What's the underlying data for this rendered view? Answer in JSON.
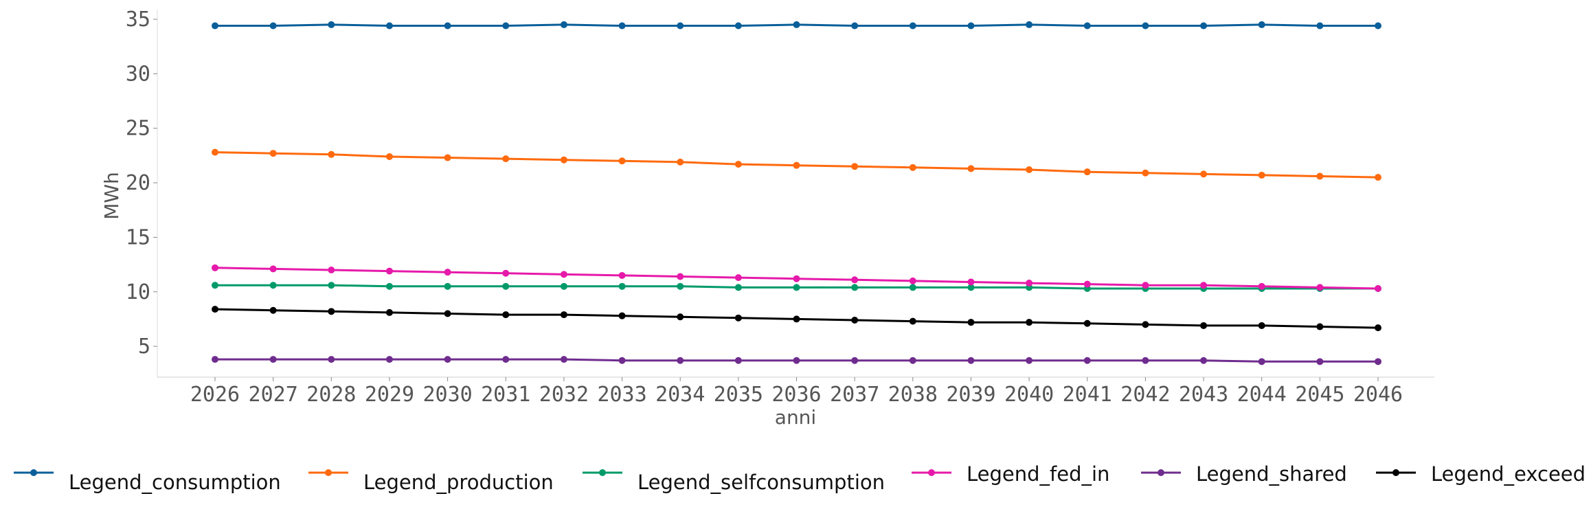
{
  "chart_data": {
    "type": "line",
    "xlabel": "anni",
    "ylabel": "MWh",
    "x": [
      "2026",
      "2027",
      "2028",
      "2029",
      "2030",
      "2031",
      "2032",
      "2033",
      "2034",
      "2035",
      "2036",
      "2037",
      "2038",
      "2039",
      "2040",
      "2041",
      "2042",
      "2043",
      "2044",
      "2045",
      "2046"
    ],
    "ylim": [
      2,
      35.5
    ],
    "yticks": [
      5,
      10,
      15,
      20,
      25,
      30,
      35
    ],
    "grid": false,
    "legend_position": "bottom",
    "series": [
      {
        "name": "Legend_consumption",
        "color": "#0a5f9a",
        "values": [
          34.4,
          34.4,
          34.5,
          34.4,
          34.4,
          34.4,
          34.5,
          34.4,
          34.4,
          34.4,
          34.5,
          34.4,
          34.4,
          34.4,
          34.5,
          34.4,
          34.4,
          34.4,
          34.5,
          34.4,
          34.4
        ]
      },
      {
        "name": "Legend_production",
        "color": "#ff6a0e",
        "values": [
          22.8,
          22.7,
          22.6,
          22.4,
          22.3,
          22.2,
          22.1,
          22.0,
          21.9,
          21.7,
          21.6,
          21.5,
          21.4,
          21.3,
          21.2,
          21.0,
          20.9,
          20.8,
          20.7,
          20.6,
          20.5
        ]
      },
      {
        "name": "Legend_selfconsumption",
        "color": "#009a6a",
        "values": [
          10.6,
          10.6,
          10.6,
          10.5,
          10.5,
          10.5,
          10.5,
          10.5,
          10.5,
          10.4,
          10.4,
          10.4,
          10.4,
          10.4,
          10.4,
          10.3,
          10.3,
          10.3,
          10.3,
          10.3,
          10.3
        ]
      },
      {
        "name": "Legend_fed_in",
        "color": "#e61aaa",
        "values": [
          12.2,
          12.1,
          12.0,
          11.9,
          11.8,
          11.7,
          11.6,
          11.5,
          11.4,
          11.3,
          11.2,
          11.1,
          11.0,
          10.9,
          10.8,
          10.7,
          10.6,
          10.6,
          10.5,
          10.4,
          10.3
        ]
      },
      {
        "name": "Legend_shared",
        "color": "#6f2c8e",
        "values": [
          3.8,
          3.8,
          3.8,
          3.8,
          3.8,
          3.8,
          3.8,
          3.7,
          3.7,
          3.7,
          3.7,
          3.7,
          3.7,
          3.7,
          3.7,
          3.7,
          3.7,
          3.7,
          3.6,
          3.6,
          3.6
        ]
      },
      {
        "name": "Legend_exceed",
        "color": "#000000",
        "values": [
          8.4,
          8.3,
          8.2,
          8.1,
          8.0,
          7.9,
          7.9,
          7.8,
          7.7,
          7.6,
          7.5,
          7.4,
          7.3,
          7.2,
          7.2,
          7.1,
          7.0,
          6.9,
          6.9,
          6.8,
          6.7
        ]
      }
    ]
  }
}
